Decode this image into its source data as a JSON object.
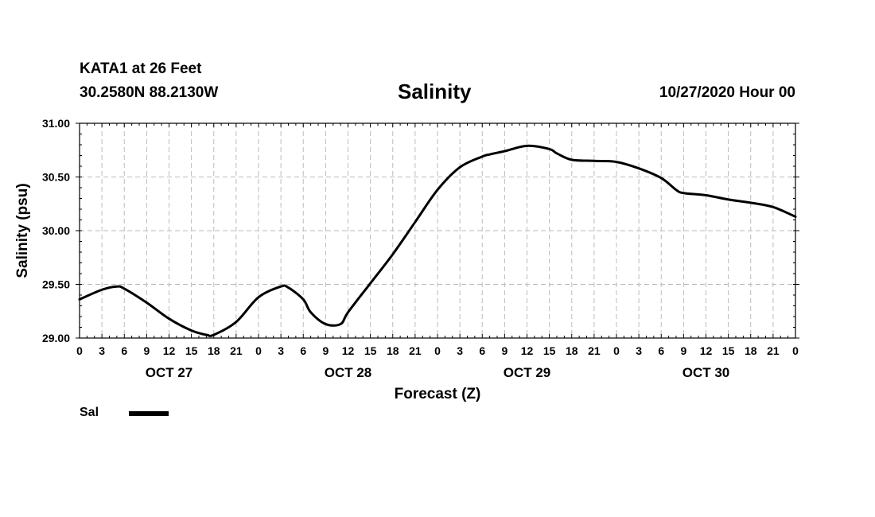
{
  "header": {
    "station": "KATA1 at 26 Feet",
    "coords": "30.2580N 88.2130W",
    "title": "Salinity",
    "issued": "10/27/2020 Hour 00"
  },
  "legend": {
    "label": "Sal",
    "color": "#000000"
  },
  "chart_data": {
    "type": "line",
    "title": "Salinity",
    "xlabel": "Forecast (Z)",
    "ylabel": "Salinity (psu)",
    "xlim": [
      0,
      96
    ],
    "ylim": [
      29.0,
      31.0
    ],
    "grid": true,
    "yticks": [
      29.0,
      29.5,
      30.0,
      30.5,
      31.0
    ],
    "ytick_labels": [
      "29.00",
      "29.50",
      "30.00",
      "30.50",
      "31.00"
    ],
    "xtick_hours": [
      0,
      3,
      6,
      9,
      12,
      15,
      18,
      21,
      24,
      27,
      30,
      33,
      36,
      39,
      42,
      45,
      48,
      51,
      54,
      57,
      60,
      63,
      66,
      69,
      72,
      75,
      78,
      81,
      84,
      87,
      90,
      93,
      96
    ],
    "xtick_labels": [
      "0",
      "3",
      "6",
      "9",
      "12",
      "15",
      "18",
      "21",
      "0",
      "3",
      "6",
      "9",
      "12",
      "15",
      "18",
      "21",
      "0",
      "3",
      "6",
      "9",
      "12",
      "15",
      "18",
      "21",
      "0",
      "3",
      "6",
      "9",
      "12",
      "15",
      "18",
      "21",
      "0"
    ],
    "day_labels": [
      {
        "hour": 12,
        "label": "OCT 27"
      },
      {
        "hour": 36,
        "label": "OCT 28"
      },
      {
        "hour": 60,
        "label": "OCT 29"
      },
      {
        "hour": 84,
        "label": "OCT 30"
      }
    ],
    "series": [
      {
        "name": "Sal",
        "color": "#000000",
        "x": [
          0,
          3,
          5,
          6,
          9,
          12,
          15,
          17,
          18,
          21,
          24,
          27,
          28,
          30,
          31,
          33,
          35,
          36,
          39,
          42,
          45,
          48,
          51,
          54,
          55,
          57,
          60,
          63,
          64,
          66,
          69,
          72,
          75,
          78,
          80,
          81,
          84,
          87,
          90,
          93,
          96
        ],
        "y": [
          29.36,
          29.45,
          29.48,
          29.46,
          29.33,
          29.18,
          29.07,
          29.03,
          29.03,
          29.15,
          29.38,
          29.48,
          29.47,
          29.36,
          29.24,
          29.13,
          29.13,
          29.24,
          29.51,
          29.78,
          30.08,
          30.38,
          30.59,
          30.69,
          30.71,
          30.74,
          30.79,
          30.76,
          30.72,
          30.66,
          30.65,
          30.64,
          30.58,
          30.49,
          30.38,
          30.35,
          30.33,
          30.29,
          30.26,
          30.22,
          30.13
        ]
      }
    ]
  }
}
